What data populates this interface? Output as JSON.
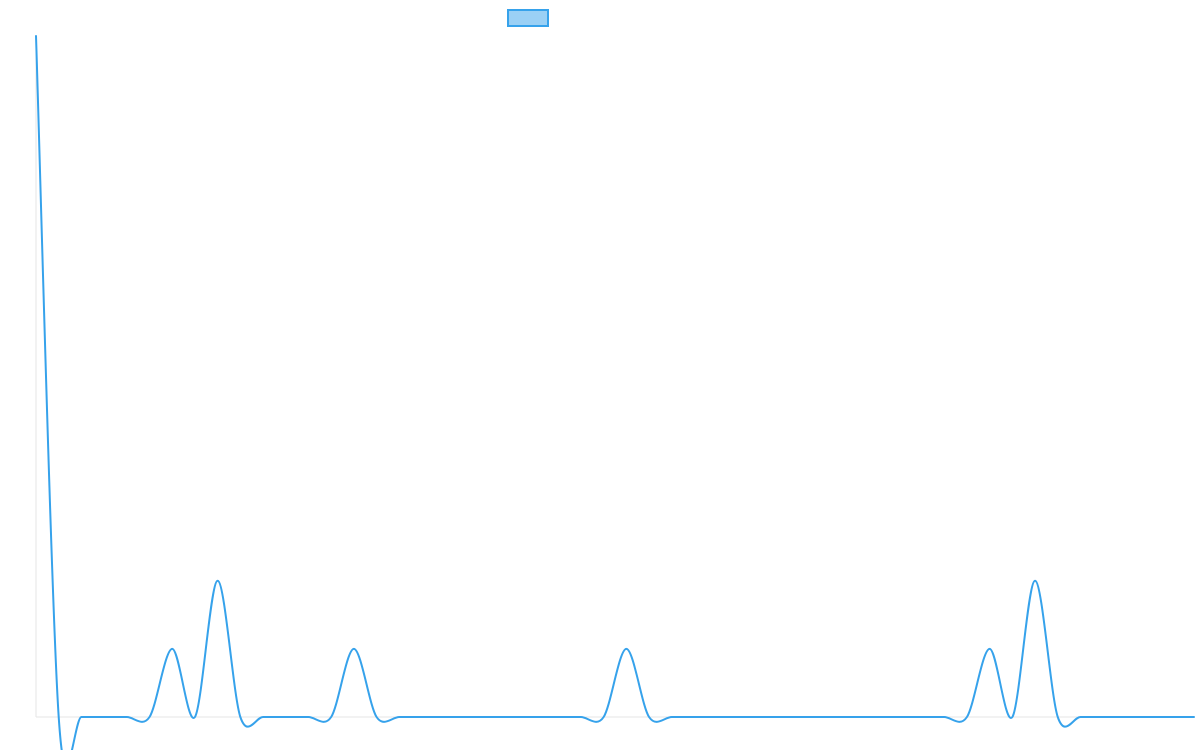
{
  "chart_data": {
    "type": "line",
    "title": "",
    "xlabel": "",
    "ylabel": "",
    "legend": {
      "placement": "top-center",
      "label": ""
    },
    "grid": false,
    "x": [
      0,
      1,
      2,
      3,
      4,
      5,
      6,
      7,
      8,
      9,
      10,
      11,
      12,
      13,
      14,
      15,
      16,
      17,
      18,
      19,
      20,
      21,
      22,
      23,
      24,
      25,
      26,
      27,
      28,
      29,
      30,
      31,
      32,
      33,
      34,
      35,
      36,
      37,
      38,
      39,
      40,
      41,
      42,
      43,
      44,
      45,
      46,
      47,
      48,
      49,
      50,
      51
    ],
    "xlim": [
      0,
      51
    ],
    "ylim": [
      0,
      10
    ],
    "series": [
      {
        "name": "",
        "values": [
          10,
          0,
          0,
          0,
          0,
          0,
          1,
          0,
          2,
          0,
          0,
          0,
          0,
          0,
          1,
          0,
          0,
          0,
          0,
          0,
          0,
          0,
          0,
          0,
          0,
          0,
          1,
          0,
          0,
          0,
          0,
          0,
          0,
          0,
          0,
          0,
          0,
          0,
          0,
          0,
          0,
          0,
          1,
          0,
          2,
          0,
          0,
          0,
          0,
          0,
          0,
          0
        ]
      }
    ],
    "colors": {
      "line": "#36a2eb",
      "legend_fill": "#9ad0f5",
      "axis": "#e6e6e6"
    }
  }
}
